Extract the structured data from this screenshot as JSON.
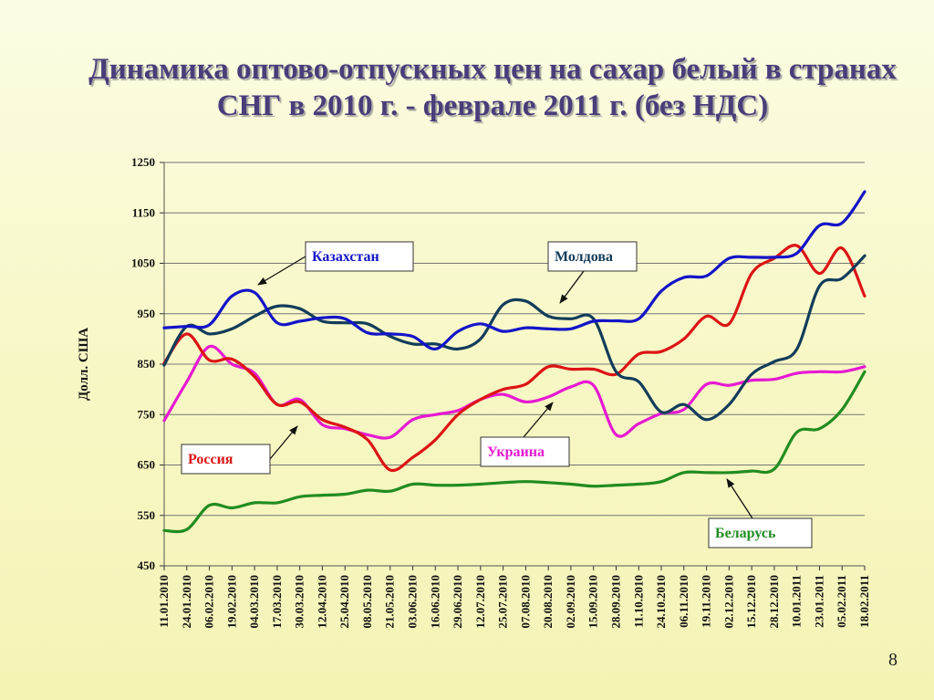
{
  "title": "Динамика оптово-отпускных цен на сахар белый в странах СНГ в 2010 г. - феврале 2011 г.  (без НДС)",
  "page_number": "8",
  "chart_data": {
    "type": "line",
    "title": "",
    "xlabel": "",
    "ylabel": "Долл. США",
    "ylim": [
      450,
      1250
    ],
    "yticks": [
      450,
      550,
      650,
      750,
      850,
      950,
      1050,
      1150,
      1250
    ],
    "grid": "horizontal",
    "x": [
      "11.01.2010",
      "24.01.2010",
      "06.02.2010",
      "19.02.2010",
      "04.03.2010",
      "17.03.2010",
      "30.03.2010",
      "12.04.2010",
      "25.04.2010",
      "08.05.2010",
      "21.05.2010",
      "03.06.2010",
      "16.06.2010",
      "29.06.2010",
      "12.07.2010",
      "25.07.2010",
      "07.08.2010",
      "20.08.2010",
      "02.09.2010",
      "15.09.2010",
      "28.09.2010",
      "11.10.2010",
      "24.10.2010",
      "06.11.2010",
      "19.11.2010",
      "02.12.2010",
      "15.12.2010",
      "28.12.2010",
      "10.01.2011",
      "23.01.2011",
      "05.02.2011",
      "18.02.2011"
    ],
    "series": [
      {
        "name": "Казахстан",
        "color": "#1414c8",
        "values": [
          922,
          925,
          928,
          985,
          992,
          932,
          935,
          942,
          940,
          912,
          910,
          905,
          880,
          915,
          930,
          915,
          922,
          920,
          920,
          935,
          936,
          940,
          995,
          1022,
          1025,
          1060,
          1062,
          1062,
          1070,
          1125,
          1130,
          1192
        ]
      },
      {
        "name": "Молдова",
        "color": "#123c5a",
        "values": [
          848,
          925,
          910,
          920,
          945,
          965,
          960,
          935,
          932,
          930,
          905,
          890,
          890,
          880,
          900,
          968,
          975,
          945,
          940,
          940,
          835,
          815,
          755,
          770,
          740,
          770,
          830,
          855,
          880,
          1005,
          1020,
          1065
        ]
      },
      {
        "name": "Россия",
        "color": "#dc1414",
        "values": [
          852,
          910,
          858,
          860,
          825,
          770,
          775,
          740,
          725,
          700,
          640,
          665,
          700,
          750,
          780,
          800,
          810,
          845,
          840,
          840,
          830,
          870,
          875,
          900,
          945,
          930,
          1030,
          1060,
          1085,
          1030,
          1080,
          985
        ]
      },
      {
        "name": "Украина",
        "color": "#e619d2",
        "values": [
          738,
          815,
          885,
          850,
          832,
          770,
          780,
          730,
          722,
          710,
          705,
          740,
          750,
          758,
          780,
          790,
          775,
          785,
          805,
          808,
          710,
          732,
          752,
          760,
          810,
          808,
          818,
          820,
          832,
          835,
          835,
          845
        ]
      },
      {
        "name": "Беларусь",
        "color": "#218c21",
        "values": [
          520,
          522,
          570,
          565,
          575,
          575,
          587,
          590,
          592,
          600,
          598,
          612,
          610,
          610,
          612,
          615,
          617,
          615,
          612,
          608,
          610,
          612,
          617,
          635,
          635,
          635,
          638,
          642,
          715,
          722,
          760,
          835
        ]
      }
    ],
    "annotations": [
      {
        "label": "Казахстан",
        "color": "#1414c8"
      },
      {
        "label": "Молдова",
        "color": "#123c5a"
      },
      {
        "label": "Россия",
        "color": "#dc1414"
      },
      {
        "label": "Украина",
        "color": "#e619d2"
      },
      {
        "label": "Беларусь",
        "color": "#218c21"
      }
    ]
  }
}
